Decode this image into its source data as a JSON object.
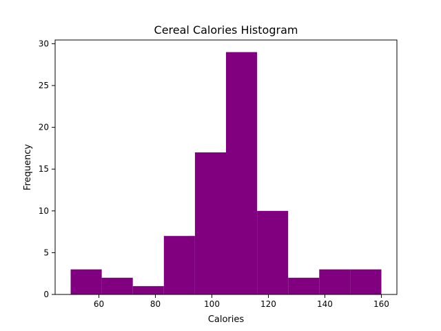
{
  "chart_data": {
    "type": "bar",
    "title": "Cereal Calories Histogram",
    "xlabel": "Calories",
    "ylabel": "Frequency",
    "bin_edges": [
      50,
      61,
      72,
      83,
      94,
      105,
      116,
      127,
      138,
      149,
      160
    ],
    "values": [
      3,
      2,
      1,
      7,
      17,
      29,
      10,
      2,
      3,
      3
    ],
    "xlim": [
      44.5,
      165.5
    ],
    "ylim": [
      0,
      30.45
    ],
    "xticks": [
      60,
      80,
      100,
      120,
      140,
      160
    ],
    "yticks": [
      0,
      5,
      10,
      15,
      20,
      25,
      30
    ],
    "color": "#800080",
    "grid": false
  }
}
